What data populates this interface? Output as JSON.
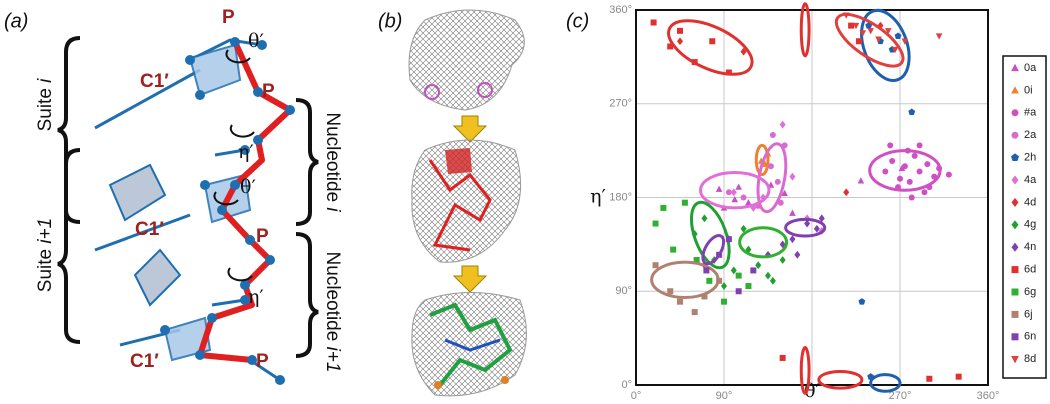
{
  "panel_a": {
    "label": "(a)",
    "atoms": [
      "P",
      "P",
      "P",
      "P"
    ],
    "c1": [
      "C1′",
      "C1′",
      "C1′"
    ],
    "theta": [
      "θ′",
      "θ′"
    ],
    "eta": [
      "η′",
      "η′"
    ],
    "suite_i": {
      "text": "Suite ",
      "index": "i"
    },
    "suite_i1": {
      "text": "Suite ",
      "index": "i+1"
    },
    "nucleotide_i": {
      "text": "Nucleotide ",
      "index": "i"
    },
    "nucleotide_i1": {
      "text": "Nucleotide ",
      "index": "i+1"
    }
  },
  "panel_b": {
    "label": "(b)"
  },
  "chart_data": {
    "type": "scatter",
    "panel_label": "(c)",
    "x_label": "θ′",
    "y_label": "η′",
    "xlim": [
      0,
      360
    ],
    "ylim": [
      0,
      360
    ],
    "xticks": [
      {
        "value": 0,
        "label": "0°"
      },
      {
        "value": 90,
        "label": "90°"
      },
      {
        "value": 180,
        "label": null
      },
      {
        "value": 270,
        "label": "270°"
      },
      {
        "value": 360,
        "label": "360°"
      }
    ],
    "yticks": [
      {
        "value": 0,
        "label": "0°"
      },
      {
        "value": 90,
        "label": "90°"
      },
      {
        "value": 180,
        "label": "180°"
      },
      {
        "value": 270,
        "label": "270°"
      },
      {
        "value": 360,
        "label": "360°"
      }
    ],
    "grid": true,
    "series": [
      {
        "name": "0a",
        "color": "#c450c8",
        "marker": "triangle",
        "x": [
          85,
          101,
          115,
          138,
          152,
          105,
          90,
          230,
          272,
          160
        ],
        "y": [
          188,
          178,
          175,
          192,
          184,
          190,
          170,
          196,
          208,
          165
        ]
      },
      {
        "name": "0i",
        "color": "#f08030",
        "marker": "triangle",
        "x": [
          128,
          132,
          135
        ],
        "y": [
          215,
          212,
          222
        ],
        "ellipses": [
          {
            "cx": 129,
            "cy": 216,
            "rx": 6,
            "ry": 14,
            "angle": 0
          }
        ]
      },
      {
        "name": "#a",
        "color": "#d050c4",
        "marker": "circle",
        "x": [
          255,
          262,
          270,
          275,
          280,
          285,
          290,
          298,
          305,
          310,
          320,
          268,
          278,
          290,
          300,
          282,
          295,
          260
        ],
        "y": [
          205,
          215,
          198,
          210,
          195,
          220,
          205,
          212,
          200,
          208,
          202,
          190,
          225,
          230,
          190,
          180,
          185,
          230
        ],
        "ellipses": [
          {
            "cx": 275,
            "cy": 206,
            "rx": 36,
            "ry": 19,
            "angle": 0
          }
        ]
      },
      {
        "name": "2a",
        "color": "#da6ad0",
        "marker": "circle",
        "x": [
          140,
          145,
          148,
          138,
          152,
          95,
          110,
          125
        ],
        "y": [
          240,
          195,
          175,
          210,
          230,
          185,
          180,
          172
        ],
        "ellipses": [
          {
            "cx": 139,
            "cy": 199,
            "rx": 13,
            "ry": 33,
            "angle": 10
          }
        ]
      },
      {
        "name": "2h",
        "color": "#1f5fb0",
        "marker": "pentagon",
        "x": [
          238,
          250,
          262,
          268,
          282,
          231,
          240
        ],
        "y": [
          345,
          330,
          322,
          335,
          262,
          80,
          8
        ],
        "ellipses": [
          {
            "cx": 255,
            "cy": 326,
            "rx": 22,
            "ry": 35,
            "angle": -20
          },
          {
            "cx": 255,
            "cy": 2,
            "rx": 15,
            "ry": 8,
            "angle": 0
          }
        ]
      },
      {
        "name": "4a",
        "color": "#e070d8",
        "marker": "diamond",
        "x": [
          100,
          120,
          130,
          160,
          175,
          190,
          150
        ],
        "y": [
          185,
          170,
          180,
          200,
          160,
          148,
          250
        ],
        "ellipses": [
          {
            "cx": 101,
            "cy": 187,
            "rx": 35,
            "ry": 17,
            "angle": 0
          }
        ]
      },
      {
        "name": "4d",
        "color": "#e03030",
        "marker": "diamond",
        "x": [
          45,
          110,
          215,
          250
        ],
        "y": [
          330,
          320,
          185,
          345
        ],
        "ellipses": [
          {
            "cx": 173,
            "cy": 341,
            "rx": 4,
            "ry": 25,
            "angle": 0
          },
          {
            "cx": 173,
            "cy": 14,
            "rx": 4,
            "ry": 22,
            "angle": 0
          }
        ]
      },
      {
        "name": "4g",
        "color": "#20a030",
        "marker": "diamond",
        "x": [
          60,
          70,
          80,
          95,
          100,
          115,
          125,
          135,
          140,
          150,
          110,
          90
        ],
        "y": [
          145,
          160,
          120,
          140,
          110,
          130,
          115,
          105,
          100,
          120,
          150,
          95
        ],
        "ellipses": [
          {
            "cx": 76,
            "cy": 144,
            "rx": 16,
            "ry": 33,
            "angle": -20
          }
        ]
      },
      {
        "name": "4n",
        "color": "#8040b0",
        "marker": "diamond",
        "x": [
          160,
          165,
          175,
          185,
          190,
          135,
          150,
          70
        ],
        "y": [
          140,
          125,
          155,
          150,
          160,
          125,
          135,
          115
        ],
        "ellipses": [
          {
            "cx": 173,
            "cy": 151,
            "rx": 20,
            "ry": 8,
            "angle": 0
          }
        ]
      },
      {
        "name": "6d",
        "color": "#e03030",
        "marker": "square",
        "x": [
          18,
          35,
          60,
          78,
          95,
          220,
          228,
          300,
          330,
          150,
          45
        ],
        "y": [
          348,
          325,
          310,
          330,
          300,
          345,
          330,
          6,
          8,
          26,
          340
        ],
        "ellipses": [
          {
            "cx": 76,
            "cy": 324,
            "rx": 46,
            "ry": 20,
            "angle": 25
          },
          {
            "cx": 209,
            "cy": 5,
            "rx": 22,
            "ry": 8,
            "angle": 0
          }
        ]
      },
      {
        "name": "6g",
        "color": "#30b030",
        "marker": "square",
        "x": [
          20,
          28,
          38,
          50,
          62,
          75,
          90,
          105,
          115
        ],
        "y": [
          155,
          170,
          130,
          175,
          120,
          100,
          80,
          105,
          95
        ],
        "ellipses": [
          {
            "cx": 130,
            "cy": 137,
            "rx": 24,
            "ry": 14,
            "angle": 0
          }
        ]
      },
      {
        "name": "6j",
        "color": "#b08070",
        "marker": "square",
        "x": [
          35,
          45,
          60,
          70,
          85,
          20
        ],
        "y": [
          90,
          80,
          70,
          85,
          100,
          115
        ],
        "ellipses": [
          {
            "cx": 50,
            "cy": 101,
            "rx": 34,
            "ry": 17,
            "angle": 0
          }
        ]
      },
      {
        "name": "6n",
        "color": "#8040b0",
        "marker": "square",
        "x": [
          72,
          85,
          95,
          120,
          105
        ],
        "y": [
          110,
          125,
          140,
          110,
          90
        ],
        "ellipses": [
          {
            "cx": 79,
            "cy": 130,
            "rx": 8,
            "ry": 15,
            "angle": 30
          }
        ]
      },
      {
        "name": "8d",
        "color": "#e04040",
        "marker": "triangle-down",
        "x": [
          215,
          225,
          232,
          240,
          248,
          258,
          265,
          275,
          310
        ],
        "y": [
          355,
          345,
          338,
          340,
          332,
          340,
          322,
          330,
          335
        ],
        "ellipses": [
          {
            "cx": 239,
            "cy": 331,
            "rx": 40,
            "ry": 15,
            "angle": 35
          }
        ]
      }
    ]
  }
}
